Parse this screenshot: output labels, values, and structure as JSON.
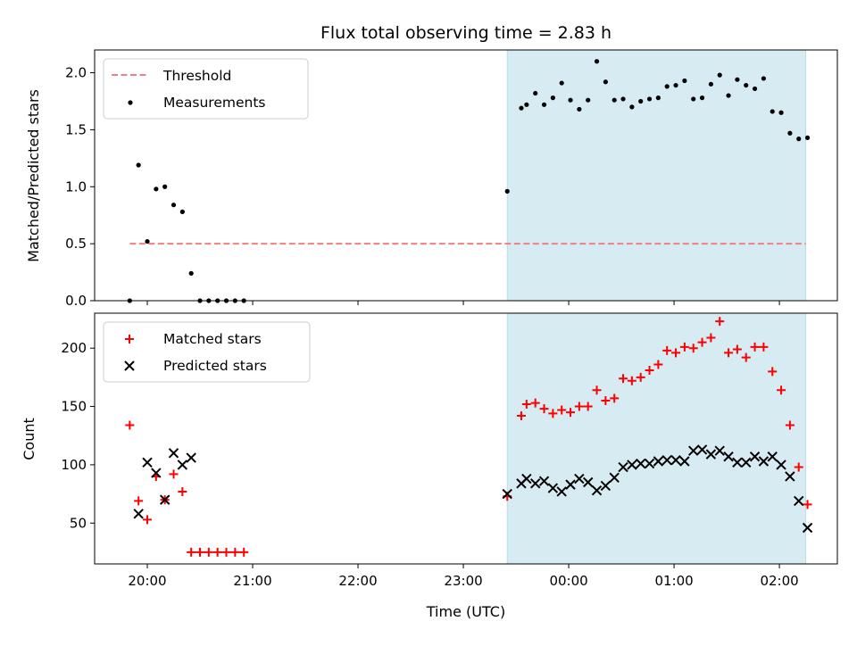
{
  "chart_data": [
    {
      "type": "scatter",
      "title": "Flux total observing time = 2.83 h",
      "xlabel": "",
      "ylabel": "Matched/Predicted stars",
      "ylim": [
        0,
        2.2
      ],
      "yticks": [
        "0.0",
        "0.5",
        "1.0",
        "1.5",
        "2.0"
      ],
      "legend_position": "top-left",
      "shaded_region": {
        "x_start": "23:25",
        "x_end": "02:15",
        "color": "#add8e6"
      },
      "threshold": {
        "name": "Threshold",
        "y": 0.5,
        "x_start": "19:50",
        "x_end": "02:15",
        "color": "#f08080",
        "style": "dashed"
      },
      "series": [
        {
          "name": "Measurements",
          "marker": "dot",
          "color": "#000000",
          "points": [
            [
              "19:50",
              0.0
            ],
            [
              "19:55",
              1.19
            ],
            [
              "20:00",
              0.52
            ],
            [
              "20:05",
              0.98
            ],
            [
              "20:10",
              1.0
            ],
            [
              "20:15",
              0.84
            ],
            [
              "20:20",
              0.78
            ],
            [
              "20:25",
              0.24
            ],
            [
              "20:30",
              0.0
            ],
            [
              "20:35",
              0.0
            ],
            [
              "20:40",
              0.0
            ],
            [
              "20:45",
              0.0
            ],
            [
              "20:50",
              0.0
            ],
            [
              "20:55",
              0.0
            ],
            [
              "23:25",
              0.96
            ],
            [
              "23:33",
              1.69
            ],
            [
              "23:36",
              1.72
            ],
            [
              "23:41",
              1.82
            ],
            [
              "23:46",
              1.72
            ],
            [
              "23:51",
              1.78
            ],
            [
              "23:56",
              1.91
            ],
            [
              "00:01",
              1.76
            ],
            [
              "00:06",
              1.68
            ],
            [
              "00:11",
              1.76
            ],
            [
              "00:16",
              2.1
            ],
            [
              "00:21",
              1.92
            ],
            [
              "00:26",
              1.76
            ],
            [
              "00:31",
              1.77
            ],
            [
              "00:36",
              1.7
            ],
            [
              "00:41",
              1.75
            ],
            [
              "00:46",
              1.77
            ],
            [
              "00:51",
              1.78
            ],
            [
              "00:56",
              1.88
            ],
            [
              "01:01",
              1.89
            ],
            [
              "01:06",
              1.93
            ],
            [
              "01:11",
              1.77
            ],
            [
              "01:16",
              1.78
            ],
            [
              "01:21",
              1.9
            ],
            [
              "01:26",
              1.98
            ],
            [
              "01:31",
              1.8
            ],
            [
              "01:36",
              1.94
            ],
            [
              "01:41",
              1.89
            ],
            [
              "01:46",
              1.86
            ],
            [
              "01:51",
              1.95
            ],
            [
              "01:56",
              1.66
            ],
            [
              "02:01",
              1.65
            ],
            [
              "02:06",
              1.47
            ],
            [
              "02:11",
              1.42
            ],
            [
              "02:16",
              1.43
            ]
          ]
        }
      ]
    },
    {
      "type": "scatter",
      "title": "",
      "xlabel": "Time (UTC)",
      "ylabel": "Count",
      "ylim": [
        15,
        230
      ],
      "yticks": [
        "50",
        "100",
        "150",
        "200"
      ],
      "xticks": [
        "20:00",
        "21:00",
        "22:00",
        "23:00",
        "00:00",
        "01:00",
        "02:00"
      ],
      "legend_position": "top-left",
      "shaded_region": {
        "x_start": "23:25",
        "x_end": "02:15",
        "color": "#add8e6"
      },
      "series": [
        {
          "name": "Matched stars",
          "marker": "plus",
          "color": "#ff0000",
          "points": [
            [
              "19:50",
              134
            ],
            [
              "19:55",
              69
            ],
            [
              "20:00",
              53
            ],
            [
              "20:05",
              90
            ],
            [
              "20:10",
              70
            ],
            [
              "20:15",
              92
            ],
            [
              "20:20",
              77
            ],
            [
              "20:25",
              25
            ],
            [
              "20:30",
              25
            ],
            [
              "20:35",
              25
            ],
            [
              "20:40",
              25
            ],
            [
              "20:45",
              25
            ],
            [
              "20:50",
              25
            ],
            [
              "20:55",
              25
            ],
            [
              "23:25",
              73
            ],
            [
              "23:33",
              142
            ],
            [
              "23:36",
              152
            ],
            [
              "23:41",
              153
            ],
            [
              "23:46",
              148
            ],
            [
              "23:51",
              144
            ],
            [
              "23:56",
              147
            ],
            [
              "00:01",
              145
            ],
            [
              "00:06",
              150
            ],
            [
              "00:11",
              150
            ],
            [
              "00:16",
              164
            ],
            [
              "00:21",
              155
            ],
            [
              "00:26",
              157
            ],
            [
              "00:31",
              174
            ],
            [
              "00:36",
              172
            ],
            [
              "00:41",
              175
            ],
            [
              "00:46",
              181
            ],
            [
              "00:51",
              186
            ],
            [
              "00:56",
              198
            ],
            [
              "01:01",
              196
            ],
            [
              "01:06",
              201
            ],
            [
              "01:11",
              200
            ],
            [
              "01:16",
              205
            ],
            [
              "01:21",
              209
            ],
            [
              "01:26",
              223
            ],
            [
              "01:31",
              196
            ],
            [
              "01:36",
              199
            ],
            [
              "01:41",
              192
            ],
            [
              "01:46",
              201
            ],
            [
              "01:51",
              201
            ],
            [
              "01:56",
              180
            ],
            [
              "02:01",
              164
            ],
            [
              "02:06",
              134
            ],
            [
              "02:11",
              98
            ],
            [
              "02:16",
              66
            ]
          ]
        },
        {
          "name": "Predicted stars",
          "marker": "x",
          "color": "#000000",
          "points": [
            [
              "19:55",
              58
            ],
            [
              "20:00",
              102
            ],
            [
              "20:05",
              93
            ],
            [
              "20:10",
              70
            ],
            [
              "20:15",
              110
            ],
            [
              "20:20",
              100
            ],
            [
              "20:25",
              106
            ],
            [
              "23:25",
              75
            ],
            [
              "23:33",
              84
            ],
            [
              "23:36",
              88
            ],
            [
              "23:41",
              84
            ],
            [
              "23:46",
              86
            ],
            [
              "23:51",
              80
            ],
            [
              "23:56",
              77
            ],
            [
              "00:01",
              83
            ],
            [
              "00:06",
              88
            ],
            [
              "00:11",
              85
            ],
            [
              "00:16",
              78
            ],
            [
              "00:21",
              82
            ],
            [
              "00:26",
              89
            ],
            [
              "00:31",
              98
            ],
            [
              "00:36",
              100
            ],
            [
              "00:41",
              101
            ],
            [
              "00:46",
              101
            ],
            [
              "00:51",
              103
            ],
            [
              "00:56",
              104
            ],
            [
              "01:01",
              104
            ],
            [
              "01:06",
              103
            ],
            [
              "01:11",
              112
            ],
            [
              "01:16",
              113
            ],
            [
              "01:21",
              109
            ],
            [
              "01:26",
              112
            ],
            [
              "01:31",
              107
            ],
            [
              "01:36",
              102
            ],
            [
              "01:41",
              102
            ],
            [
              "01:46",
              107
            ],
            [
              "01:51",
              103
            ],
            [
              "01:56",
              107
            ],
            [
              "02:01",
              100
            ],
            [
              "02:06",
              90
            ],
            [
              "02:11",
              69
            ],
            [
              "02:16",
              46
            ]
          ]
        }
      ]
    }
  ]
}
